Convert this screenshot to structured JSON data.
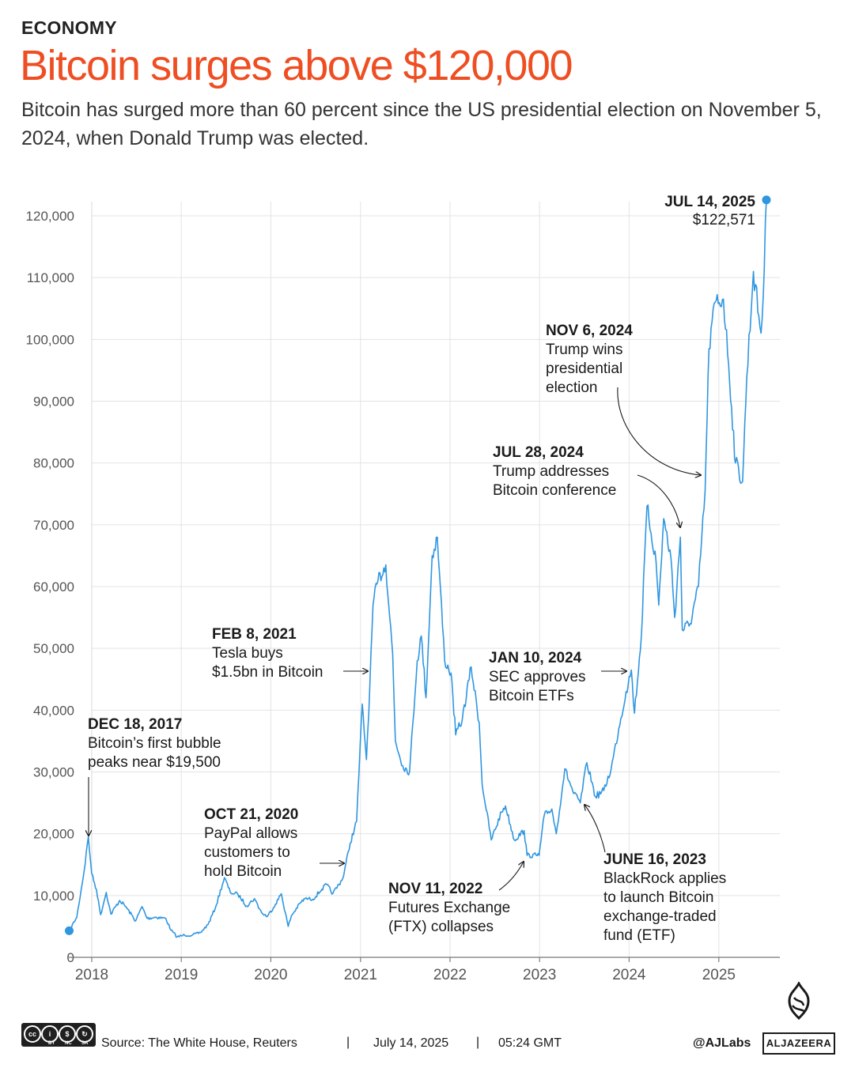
{
  "header": {
    "kicker": "ECONOMY",
    "title": "Bitcoin surges above $120,000",
    "subtitle": "Bitcoin has surged more than 60 percent since the US presidential election on November 5, 2024, when Donald Trump was elected."
  },
  "chart_data": {
    "type": "line",
    "ylim": [
      0,
      120000
    ],
    "y_ticks": [
      0,
      10000,
      20000,
      30000,
      40000,
      50000,
      60000,
      70000,
      80000,
      90000,
      100000,
      110000,
      120000
    ],
    "y_tick_labels": [
      "0",
      "10,000",
      "20,000",
      "30,000",
      "40,000",
      "50,000",
      "60,000",
      "70,000",
      "80,000",
      "90,000",
      "100,000",
      "110,000",
      "120,000"
    ],
    "x_ticks": [
      "2018",
      "2019",
      "2020",
      "2021",
      "2022",
      "2023",
      "2024",
      "2025"
    ],
    "grid": true,
    "color": "#2f96e0",
    "series": [
      {
        "x": [
          "2017-10-01",
          "2017-11-01",
          "2017-12-01",
          "2017-12-18",
          "2018-01-01",
          "2018-01-20",
          "2018-02-06",
          "2018-03-01",
          "2018-03-20",
          "2018-04-25",
          "2018-05-20",
          "2018-06-29",
          "2018-07-25",
          "2018-08-15",
          "2018-09-20",
          "2018-10-30",
          "2018-11-20",
          "2018-12-15",
          "2019-01-15",
          "2019-02-15",
          "2019-03-20",
          "2019-04-20",
          "2019-05-20",
          "2019-06-26",
          "2019-07-20",
          "2019-08-20",
          "2019-09-25",
          "2019-10-26",
          "2019-11-25",
          "2019-12-18",
          "2020-01-20",
          "2020-02-13",
          "2020-03-12",
          "2020-03-25",
          "2020-04-30",
          "2020-05-20",
          "2020-06-20",
          "2020-07-27",
          "2020-08-15",
          "2020-09-10",
          "2020-10-21",
          "2020-11-20",
          "2020-12-16",
          "2021-01-08",
          "2021-01-25",
          "2021-02-08",
          "2021-02-21",
          "2021-03-13",
          "2021-04-14",
          "2021-05-12",
          "2021-05-23",
          "2021-06-22",
          "2021-07-20",
          "2021-08-20",
          "2021-09-06",
          "2021-09-25",
          "2021-10-20",
          "2021-11-10",
          "2021-12-10",
          "2022-01-05",
          "2022-01-24",
          "2022-02-20",
          "2022-03-28",
          "2022-04-30",
          "2022-05-12",
          "2022-06-18",
          "2022-07-30",
          "2022-08-15",
          "2022-09-20",
          "2022-10-30",
          "2022-11-11",
          "2022-12-30",
          "2023-01-20",
          "2023-02-20",
          "2023-03-10",
          "2023-04-14",
          "2023-05-20",
          "2023-06-16",
          "2023-07-13",
          "2023-08-17",
          "2023-09-20",
          "2023-10-20",
          "2023-11-20",
          "2023-12-20",
          "2024-01-10",
          "2024-01-23",
          "2024-02-20",
          "2024-03-14",
          "2024-04-20",
          "2024-05-01",
          "2024-05-21",
          "2024-06-20",
          "2024-07-05",
          "2024-07-28",
          "2024-08-05",
          "2024-09-06",
          "2024-10-10",
          "2024-11-06",
          "2024-11-22",
          "2024-12-17",
          "2025-01-20",
          "2025-02-10",
          "2025-03-10",
          "2025-04-08",
          "2025-04-25",
          "2025-05-22",
          "2025-06-22",
          "2025-07-01",
          "2025-07-14"
        ],
        "y": [
          4300,
          6500,
          14000,
          19500,
          13500,
          11000,
          6900,
          10500,
          7000,
          9200,
          8200,
          5900,
          8200,
          6300,
          6500,
          6300,
          4400,
          3300,
          3600,
          3600,
          4000,
          5300,
          8000,
          12900,
          10500,
          10200,
          8300,
          9500,
          7200,
          6600,
          8600,
          10300,
          5000,
          6700,
          8800,
          9500,
          9400,
          11000,
          11800,
          10300,
          12800,
          18500,
          22000,
          41000,
          32000,
          44000,
          57000,
          61000,
          63500,
          49000,
          35000,
          31000,
          30000,
          48000,
          52000,
          42000,
          65000,
          68000,
          48000,
          46000,
          36000,
          38500,
          47000,
          38000,
          28000,
          19000,
          23500,
          24500,
          19000,
          20500,
          16500,
          16500,
          23000,
          24000,
          20000,
          30500,
          26500,
          25000,
          31500,
          26000,
          27000,
          30500,
          37000,
          43000,
          46500,
          39500,
          52000,
          73000,
          64000,
          57000,
          71000,
          64500,
          55000,
          68000,
          53000,
          54000,
          60000,
          75500,
          98500,
          106000,
          106500,
          96000,
          80000,
          77000,
          94000,
          111000,
          101000,
          107000,
          122571
        ]
      }
    ],
    "endpoint": {
      "date": "JUL 14, 2025",
      "value": "$122,571"
    },
    "annotations": [
      {
        "date": "DEC 18, 2017",
        "text": "Bitcoin’s first bubble peaks near $19,500"
      },
      {
        "date": "OCT 21, 2020",
        "text": "PayPal allows customers to hold Bitcoin"
      },
      {
        "date": "FEB 8, 2021",
        "text": "Tesla buys $1.5bn in Bitcoin"
      },
      {
        "date": "NOV 11, 2022",
        "text": "Futures Exchange (FTX) collapses"
      },
      {
        "date": "JUNE 16, 2023",
        "text": "BlackRock applies to launch Bitcoin exchange-traded fund (ETF)"
      },
      {
        "date": "JAN 10, 2024",
        "text": "SEC approves Bitcoin ETFs"
      },
      {
        "date": "JUL 28, 2024",
        "text": "Trump addresses Bitcoin conference"
      },
      {
        "date": "NOV 6, 2024",
        "text": "Trump wins presidential election"
      }
    ]
  },
  "footer": {
    "license": {
      "by": "BY",
      "nc": "NC",
      "sa": "SA"
    },
    "source": "Source:  The White House, Reuters",
    "date": "July 14, 2025",
    "time": "05:24 GMT",
    "handle": "@AJLabs",
    "brand": "ALJAZEERA"
  }
}
